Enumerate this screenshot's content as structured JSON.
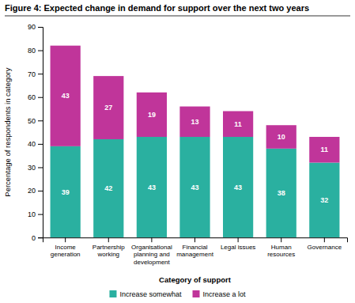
{
  "chart_data": {
    "type": "bar",
    "title": "Figure 4: Expected change in demand for support over the next two years",
    "xlabel": "Category of support",
    "ylabel": "Percentage of respondents in category",
    "categories": [
      "Income\ngeneration",
      "Partnership\nworking",
      "Organisational\nplanning and\ndevelopment",
      "Financial\nmanagement",
      "Legal issues",
      "Human\nresources",
      "Governance"
    ],
    "series": [
      {
        "name": "Increase somewhat",
        "color": "#2ab0a0",
        "values": [
          39,
          42,
          43,
          43,
          43,
          38,
          32
        ]
      },
      {
        "name": "Increase a lot",
        "color": "#c0359a",
        "values": [
          43,
          27,
          19,
          13,
          11,
          10,
          11
        ]
      }
    ],
    "stacked": true,
    "data_labels": true,
    "legend": "bottom",
    "ylim": [
      0,
      90
    ],
    "yticks": [
      0,
      10,
      20,
      30,
      40,
      50,
      60,
      70,
      80,
      90
    ]
  }
}
